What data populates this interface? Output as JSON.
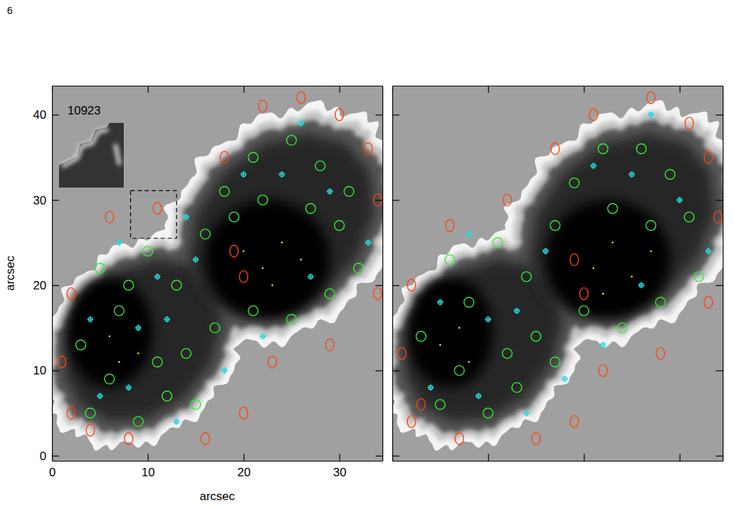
{
  "page": {
    "number": "6"
  },
  "chart_data": [
    {
      "type": "scatter",
      "xlabel": "arcsec",
      "ylabel": "arcsec",
      "annotation": "10923",
      "xlim": [
        0,
        34.5
      ],
      "ylim": [
        -0.6,
        43.4
      ],
      "xticks": [
        0,
        10,
        20,
        30
      ],
      "yticks": [
        0,
        10,
        20,
        30,
        40
      ],
      "zoom_box": {
        "x": [
          8.2,
          13.0
        ],
        "y": [
          25.5,
          31.1
        ]
      },
      "series": [
        {
          "color": "#33ee33",
          "marker": "circle",
          "x": [
            4,
            6,
            9,
            12,
            15,
            3,
            7,
            11,
            14,
            5,
            10,
            13,
            16,
            18,
            21,
            25,
            28,
            31,
            30,
            27,
            22,
            19,
            32,
            29,
            25,
            21,
            17,
            8
          ],
          "values": [
            5,
            9,
            4,
            7,
            6,
            13,
            17,
            11,
            12,
            22,
            24,
            20,
            26,
            31,
            35,
            37,
            34,
            31,
            27,
            29,
            30,
            28,
            22,
            19,
            16,
            17,
            15,
            20
          ]
        },
        {
          "color": "#22dddd",
          "marker": "plus",
          "x": [
            5,
            8,
            13,
            4,
            9,
            12,
            7,
            15,
            20,
            24,
            29,
            33,
            27,
            22,
            18,
            11,
            26,
            14
          ],
          "values": [
            7,
            8,
            4,
            16,
            15,
            16,
            25,
            23,
            33,
            33,
            31,
            25,
            21,
            14,
            10,
            21,
            39,
            28
          ]
        },
        {
          "color": "#ff4411",
          "marker": "ellipse",
          "x": [
            2,
            1,
            2,
            6,
            11,
            18,
            22,
            26,
            30,
            33,
            34,
            34,
            29,
            23,
            20,
            16,
            8,
            4,
            19,
            20
          ],
          "values": [
            5,
            11,
            19,
            28,
            29,
            35,
            41,
            42,
            40,
            36,
            30,
            19,
            13,
            11,
            5,
            2,
            2,
            3,
            24,
            21
          ]
        },
        {
          "color": "#eeee00",
          "marker": "dot",
          "x": [
            22,
            24,
            20,
            23,
            26,
            6,
            9,
            7
          ],
          "values": [
            22,
            25,
            24,
            20,
            23,
            14,
            12,
            11
          ]
        }
      ]
    },
    {
      "type": "scatter",
      "tick_labels": false,
      "xlim": [
        0,
        34.5
      ],
      "ylim": [
        -0.6,
        43.4
      ],
      "xticks": [
        0,
        10,
        20,
        30
      ],
      "yticks": [
        0,
        10,
        20,
        30,
        40
      ],
      "series": [
        {
          "color": "#33ee33",
          "marker": "circle",
          "x": [
            5,
            7,
            10,
            13,
            3,
            8,
            12,
            15,
            6,
            11,
            14,
            17,
            19,
            22,
            26,
            29,
            31,
            27,
            23,
            32,
            28,
            24,
            20,
            17
          ],
          "values": [
            6,
            10,
            5,
            8,
            14,
            18,
            12,
            14,
            23,
            25,
            21,
            27,
            32,
            36,
            36,
            33,
            28,
            27,
            29,
            21,
            18,
            15,
            17,
            11
          ]
        },
        {
          "color": "#22dddd",
          "marker": "plus",
          "x": [
            4,
            9,
            14,
            5,
            10,
            13,
            8,
            16,
            21,
            25,
            30,
            33,
            26,
            22,
            18,
            27
          ],
          "values": [
            8,
            7,
            5,
            18,
            16,
            17,
            26,
            24,
            34,
            33,
            30,
            24,
            20,
            13,
            9,
            40
          ]
        },
        {
          "color": "#ff4411",
          "marker": "ellipse",
          "x": [
            2,
            1,
            2,
            6,
            12,
            17,
            21,
            27,
            31,
            33,
            34,
            33,
            28,
            22,
            19,
            15,
            7,
            3,
            19,
            20
          ],
          "values": [
            4,
            12,
            20,
            27,
            30,
            36,
            40,
            42,
            39,
            35,
            28,
            18,
            12,
            10,
            4,
            2,
            2,
            6,
            23,
            19
          ]
        },
        {
          "color": "#eeee00",
          "marker": "dot",
          "x": [
            21,
            23,
            25,
            22,
            27,
            5,
            8,
            7
          ],
          "values": [
            22,
            25,
            21,
            19,
            24,
            13,
            11,
            15
          ]
        }
      ]
    }
  ]
}
